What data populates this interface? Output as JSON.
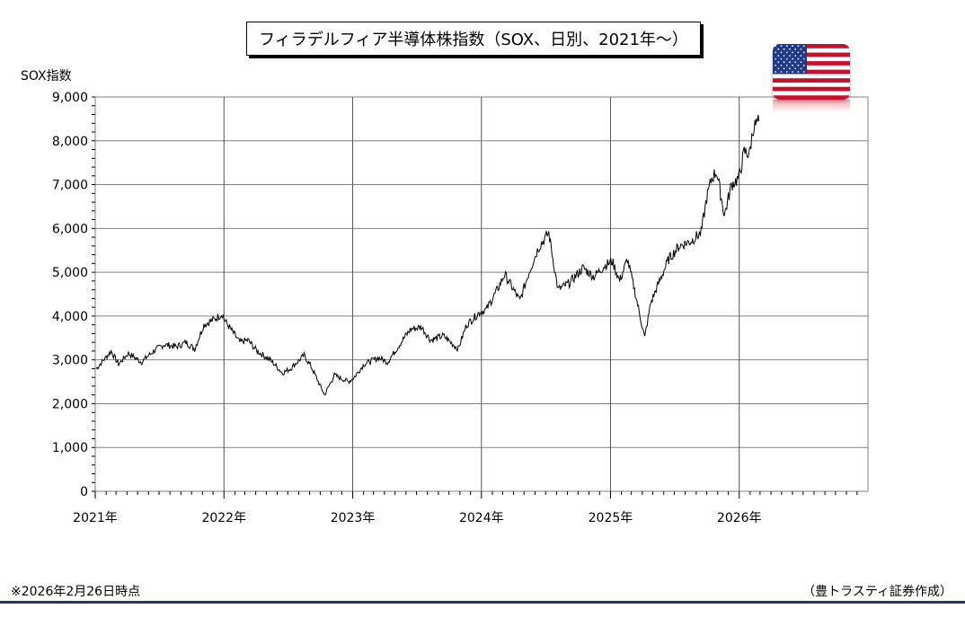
{
  "title": "フィラデルフィア半導体株指数（SOX、日別、2021年〜）",
  "footnote": "※2026年2月26日時点",
  "credit": "（豊トラスティ証券作成）",
  "flag_icon": "us-flag-icon",
  "colors": {
    "line": "#000000",
    "grid": "#808080",
    "rule": "#1f3864",
    "flag_red": "#c8102e",
    "flag_blue": "#1e3a8a"
  },
  "chart_data": {
    "type": "line",
    "ylabel": "SOX指数",
    "ylim": [
      0,
      9000
    ],
    "yticks": [
      0,
      1000,
      2000,
      3000,
      4000,
      5000,
      6000,
      7000,
      8000,
      9000
    ],
    "ytick_labels": [
      "0",
      "1,000",
      "2,000",
      "3,000",
      "4,000",
      "5,000",
      "6,000",
      "7,000",
      "8,000",
      "9,000"
    ],
    "xlim": [
      "2021-01-01",
      "2027-01-01"
    ],
    "xtick_labels": [
      "2021年",
      "2022年",
      "2023年",
      "2024年",
      "2025年",
      "2026年"
    ],
    "grid": true,
    "series": [
      {
        "x": [
          "2021-01-04",
          "2021-02-15",
          "2021-03-08",
          "2021-04-05",
          "2021-05-12",
          "2021-06-15",
          "2021-07-15",
          "2021-08-20",
          "2021-09-15",
          "2021-10-10",
          "2021-11-05",
          "2021-12-10",
          "2021-12-27",
          "2022-01-03",
          "2022-02-15",
          "2022-03-10",
          "2022-04-05",
          "2022-05-12",
          "2022-06-16",
          "2022-07-08",
          "2022-08-16",
          "2022-09-05",
          "2022-10-13",
          "2022-11-10",
          "2022-12-20",
          "2023-01-05",
          "2023-02-02",
          "2023-03-15",
          "2023-04-10",
          "2023-05-31",
          "2023-06-15",
          "2023-07-15",
          "2023-08-10",
          "2023-09-15",
          "2023-10-27",
          "2023-11-20",
          "2023-12-29",
          "2024-01-15",
          "2024-02-15",
          "2024-03-07",
          "2024-04-19",
          "2024-05-15",
          "2024-06-10",
          "2024-07-10",
          "2024-08-05",
          "2024-09-06",
          "2024-10-15",
          "2024-11-15",
          "2024-12-15",
          "2025-01-06",
          "2025-01-27",
          "2025-02-18",
          "2025-03-10",
          "2025-04-08",
          "2025-04-25",
          "2025-05-15",
          "2025-06-15",
          "2025-07-15",
          "2025-08-15",
          "2025-09-15",
          "2025-10-01",
          "2025-10-15",
          "2025-10-29",
          "2025-11-20",
          "2025-12-10",
          "2025-12-31",
          "2026-01-15",
          "2026-01-30",
          "2026-02-10",
          "2026-02-26"
        ],
        "y": [
          2800,
          3200,
          2900,
          3150,
          2950,
          3200,
          3350,
          3300,
          3400,
          3250,
          3800,
          3950,
          4050,
          3900,
          3400,
          3450,
          3200,
          3000,
          2700,
          2800,
          3100,
          2850,
          2200,
          2650,
          2500,
          2600,
          2900,
          3050,
          2950,
          3550,
          3700,
          3750,
          3450,
          3550,
          3250,
          3800,
          4100,
          4150,
          4600,
          4950,
          4350,
          5000,
          5550,
          5900,
          4600,
          4750,
          5100,
          4900,
          5150,
          5250,
          4800,
          5300,
          4600,
          3500,
          4300,
          4700,
          5300,
          5600,
          5700,
          5900,
          6700,
          7150,
          7300,
          6300,
          7000,
          7150,
          7750,
          7700,
          8300,
          8450
        ]
      }
    ]
  }
}
